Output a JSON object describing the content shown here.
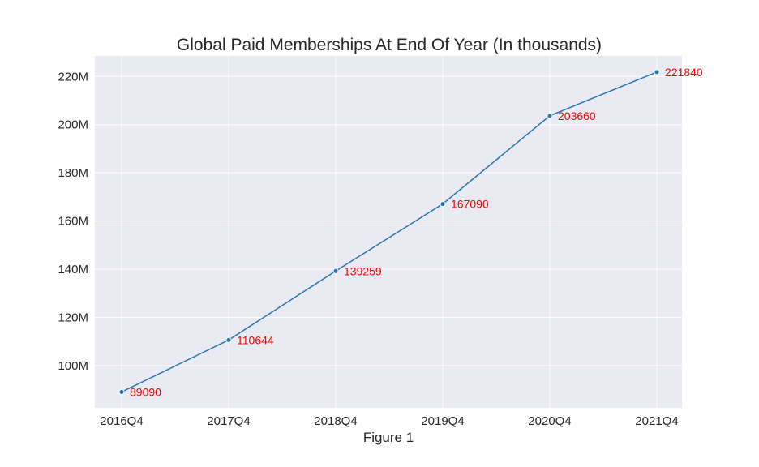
{
  "chart_data": {
    "type": "line",
    "title": "Global Paid Memberships At End Of Year (In thousands)",
    "xlabel": "Figure 1",
    "ylabel": "",
    "categories": [
      "2016Q4",
      "2017Q4",
      "2018Q4",
      "2019Q4",
      "2020Q4",
      "2021Q4"
    ],
    "series": [
      {
        "values": [
          89090000,
          110644000,
          139259000,
          167090000,
          203660000,
          221840000
        ]
      }
    ],
    "data_labels": [
      "89090",
      "110644",
      "139259",
      "167090",
      "203660",
      "221840"
    ],
    "y_ticks": [
      100000000,
      120000000,
      140000000,
      160000000,
      180000000,
      200000000,
      220000000
    ],
    "y_tick_labels": [
      "100M",
      "120M",
      "140M",
      "160M",
      "180M",
      "200M",
      "220M"
    ],
    "ylim": [
      82500000,
      228500000
    ],
    "grid": true,
    "colors": {
      "line": "#2a76b0",
      "point": "#2a76b0",
      "label": "#ff0000",
      "plot_bg": "#eaeaf2",
      "grid": "#ffffff"
    }
  }
}
